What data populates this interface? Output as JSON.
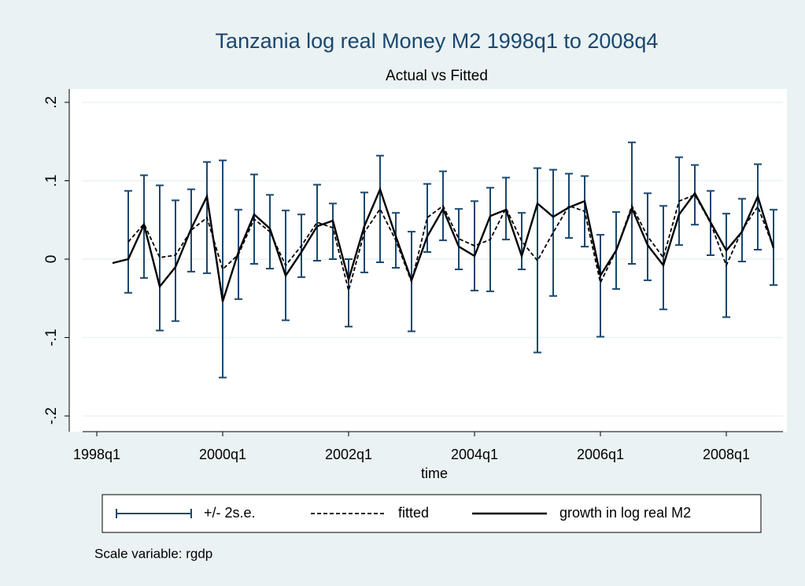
{
  "chart_data": {
    "type": "line",
    "title": "Tanzania log real Money M2 1998q1 to 2008q4",
    "subtitle": "Actual vs Fitted",
    "x_label": "time",
    "note": "Scale variable: rgdp",
    "categories": [
      "1998q1",
      null,
      null,
      null,
      null,
      null,
      null,
      null,
      "2000q1",
      null,
      null,
      null,
      null,
      null,
      null,
      null,
      "2002q1",
      null,
      null,
      null,
      null,
      null,
      null,
      null,
      "2004q1",
      null,
      null,
      null,
      null,
      null,
      null,
      null,
      "2006q1",
      null,
      null,
      null,
      null,
      null,
      null,
      null,
      "2008q1",
      null,
      null,
      null
    ],
    "ylim": [
      -0.22,
      0.217
    ],
    "yticks": [
      {
        "value": -0.2,
        "label": "-.2"
      },
      {
        "value": -0.1,
        "label": "-.1"
      },
      0,
      {
        "value": 0.1,
        "label": ".1"
      },
      {
        "value": 0.2,
        "label": ".2"
      }
    ],
    "grid": true,
    "series": [
      {
        "name": "+/- 2s.e.",
        "color": "#1a476f",
        "type": "rcap",
        "low": [
          null,
          null,
          -0.043,
          -0.024,
          -0.091,
          -0.079,
          -0.016,
          -0.018,
          -0.151,
          -0.051,
          -0.006,
          -0.012,
          -0.078,
          -0.023,
          -0.002,
          0,
          -0.086,
          -0.017,
          -0.004,
          -0.011,
          -0.092,
          0.009,
          0.024,
          -0.013,
          -0.04,
          -0.041,
          0.025,
          -0.013,
          -0.119,
          -0.047,
          0.027,
          0.016,
          -0.099,
          -0.038,
          -0.006,
          -0.027,
          -0.064,
          0.018,
          0.044,
          0.005,
          -0.074,
          -0.003,
          0.012,
          -0.033
        ],
        "high": [
          null,
          null,
          0.087,
          0.107,
          0.094,
          0.075,
          0.089,
          0.124,
          0.126,
          0.063,
          0.108,
          0.082,
          0.062,
          0.057,
          0.095,
          0.071,
          0,
          0.085,
          0.132,
          0.059,
          0.035,
          0.096,
          0.112,
          0.064,
          0.074,
          0.091,
          0.104,
          0.059,
          0.116,
          0.114,
          0.109,
          0.106,
          0.031,
          0.06,
          0.149,
          0.084,
          0.068,
          0.13,
          0.12,
          0.087,
          0.058,
          0.077,
          0.121,
          0.063
        ]
      },
      {
        "name": "fitted",
        "color": "#000000",
        "dashed": true,
        "values": [
          null,
          null,
          0.022,
          0.045,
          0.002,
          0.005,
          0.037,
          0.053,
          -0.013,
          0.006,
          0.051,
          0.035,
          -0.008,
          0.017,
          0.047,
          0.04,
          -0.04,
          0.034,
          0.064,
          0.024,
          -0.029,
          0.053,
          0.068,
          0.026,
          0.017,
          0.025,
          0.065,
          0.023,
          -0.002,
          0.034,
          0.068,
          0.061,
          -0.03,
          0.011,
          0.068,
          0.029,
          0.002,
          0.074,
          0.082,
          0.046,
          -0.008,
          0.037,
          0.067,
          0.015
        ]
      },
      {
        "name": "growth in log real M2",
        "color": "#000000",
        "dashed": false,
        "values": [
          null,
          -0.005,
          0,
          0.044,
          -0.035,
          -0.01,
          0.039,
          0.08,
          -0.054,
          0.009,
          0.057,
          0.039,
          -0.021,
          0.009,
          0.042,
          0.049,
          -0.026,
          0.042,
          0.089,
          0.029,
          -0.027,
          0.029,
          0.064,
          0.016,
          0.004,
          0.055,
          0.063,
          0.004,
          0.071,
          0.054,
          0.066,
          0.074,
          -0.021,
          0.011,
          0.065,
          0.018,
          -0.008,
          0.057,
          0.084,
          0.047,
          0.011,
          0.035,
          0.08,
          0.014
        ]
      }
    ]
  }
}
